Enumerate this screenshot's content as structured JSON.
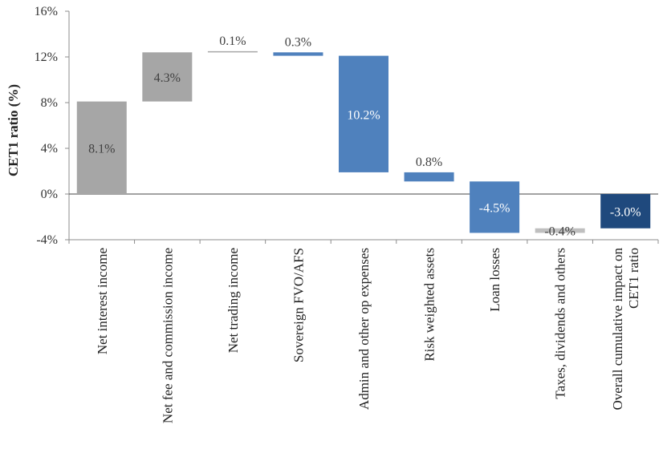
{
  "chart_data": {
    "type": "waterfall",
    "title": "",
    "xlabel": "",
    "ylabel": "CET1 ratio (%)",
    "ylim": [
      -4,
      16
    ],
    "yticks": [
      -4,
      0,
      4,
      8,
      12,
      16
    ],
    "ytick_labels": [
      "-4%",
      "0%",
      "4%",
      "8%",
      "12%",
      "16%"
    ],
    "grid": false,
    "categories": [
      "Net interest income",
      "Net fee and commission income",
      "Net  trading income",
      "Sovereign FVO/AFS",
      "Admin and other op expenses",
      "Risk weighted assets",
      "Loan losses",
      "Taxes, dividends and others",
      "Overall cumulative impact on CET1 ratio"
    ],
    "category_lines": [
      [
        "Net interest income"
      ],
      [
        "Net fee and commission income"
      ],
      [
        "Net  trading income"
      ],
      [
        "Sovereign FVO/AFS"
      ],
      [
        "Admin and other op expenses"
      ],
      [
        "Risk weighted assets"
      ],
      [
        "Loan losses"
      ],
      [
        "Taxes, dividends and others"
      ],
      [
        "Overall cumulative impact on",
        "CET1 ratio"
      ]
    ],
    "bars": [
      {
        "base": 0.0,
        "top": 8.1,
        "label": "8.1%",
        "color": "#a6a6a6",
        "label_color": "#404040"
      },
      {
        "base": 8.1,
        "top": 12.4,
        "label": "4.3%",
        "color": "#a6a6a6",
        "label_color": "#404040"
      },
      {
        "base": 12.4,
        "top": 12.5,
        "label": "0.1%",
        "color": "#a6a6a6",
        "label_color": "#404040"
      },
      {
        "base": 12.1,
        "top": 12.4,
        "label": "0.3%",
        "color": "#4f81bd",
        "label_color": "#404040"
      },
      {
        "base": 1.9,
        "top": 12.1,
        "label": "10.2%",
        "color": "#4f81bd",
        "label_color": "#ffffff"
      },
      {
        "base": 1.1,
        "top": 1.9,
        "label": "0.8%",
        "color": "#4f81bd",
        "label_color": "#404040"
      },
      {
        "base": -3.4,
        "top": 1.1,
        "label": "-4.5%",
        "color": "#4f81bd",
        "label_color": "#ffffff"
      },
      {
        "base": -3.4,
        "top": -3.0,
        "label": "-0.4%",
        "color": "#bfbfbf",
        "label_color": "#404040"
      },
      {
        "base": -3.0,
        "top": 0.0,
        "label": "-3.0%",
        "color": "#1f497d",
        "label_color": "#ffffff"
      }
    ]
  }
}
